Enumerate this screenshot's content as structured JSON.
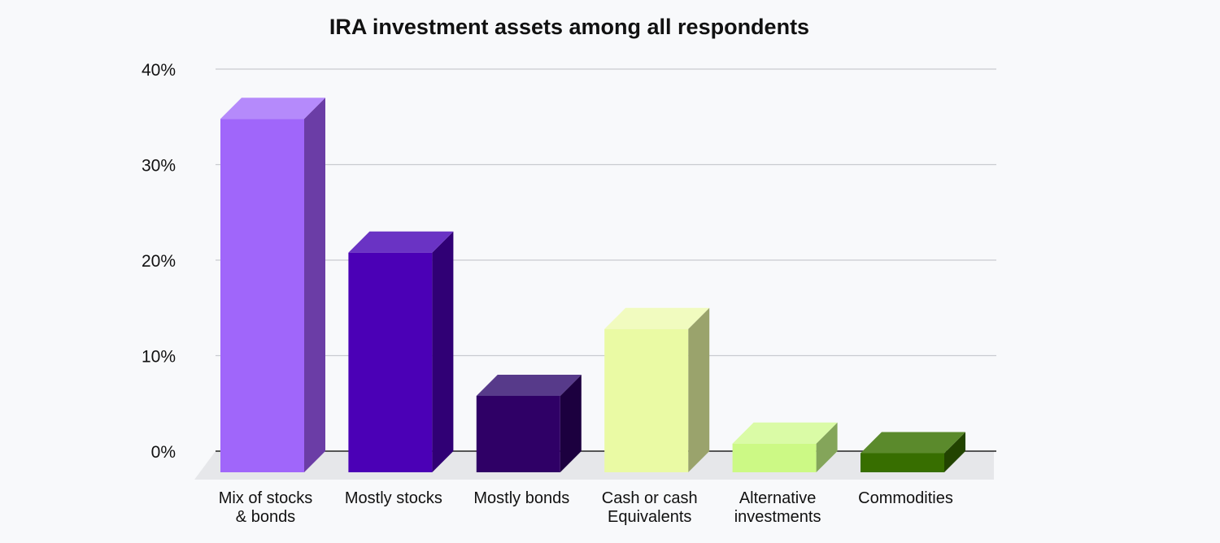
{
  "chart_data": {
    "type": "bar",
    "title": "IRA investment assets among all respondents",
    "xlabel": "",
    "ylabel": "",
    "ylim": [
      0,
      40
    ],
    "yticks": [
      "0%",
      "10%",
      "20%",
      "30%",
      "40%"
    ],
    "grid": true,
    "categories": [
      [
        "Mix of stocks",
        "& bonds"
      ],
      [
        "Mostly stocks"
      ],
      [
        "Mostly bonds"
      ],
      [
        "Cash or cash",
        "Equivalents"
      ],
      [
        "Alternative",
        "investments"
      ],
      [
        "Commodities"
      ]
    ],
    "values": [
      37,
      23,
      8,
      15,
      3,
      2
    ],
    "colors": [
      {
        "front": "#a066fa",
        "top": "#b58afb",
        "side": "#6b3da6"
      },
      {
        "front": "#4b00b6",
        "top": "#6a33c4",
        "side": "#300075"
      },
      {
        "front": "#2f0066",
        "top": "#573a8a",
        "side": "#1c003f"
      },
      {
        "front": "#eafaa4",
        "top": "#f1fbbf",
        "side": "#9aa36c"
      },
      {
        "front": "#ccf985",
        "top": "#dafba6",
        "side": "#84a55a"
      },
      {
        "front": "#376e00",
        "top": "#5b8a2c",
        "side": "#224400"
      }
    ]
  }
}
